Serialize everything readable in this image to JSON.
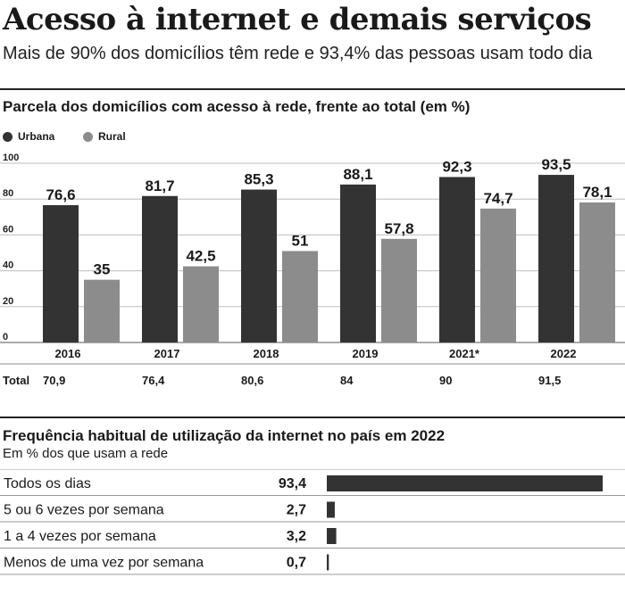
{
  "header": {
    "title": "Acesso à internet e demais serviços",
    "subtitle": "Mais de 90% dos domicílios têm rede e 93,4% das pessoas usam todo dia"
  },
  "chart_data": [
    {
      "type": "bar",
      "title": "Parcela dos domicílios com acesso à rede, frente ao total (em %)",
      "categories": [
        "2016",
        "2017",
        "2018",
        "2019",
        "2021*",
        "2022"
      ],
      "series": [
        {
          "name": "Urbana",
          "values": [
            76.6,
            81.7,
            85.3,
            88.1,
            92.3,
            93.5
          ],
          "labels": [
            "76,6",
            "81,7",
            "85,3",
            "88,1",
            "92,3",
            "93,5"
          ],
          "color": "#333333"
        },
        {
          "name": "Rural",
          "values": [
            35,
            42.5,
            51,
            57.8,
            74.7,
            78.1
          ],
          "labels": [
            "35",
            "42,5",
            "51",
            "57,8",
            "74,7",
            "78,1"
          ],
          "color": "#8c8c8c"
        }
      ],
      "ylim": [
        0,
        100
      ],
      "yticks": [
        "0",
        "20",
        "40",
        "60",
        "80",
        "100"
      ],
      "grid": true,
      "legend": "top-left",
      "total_row": {
        "label": "Total",
        "values": [
          "70,9",
          "76,4",
          "80,6",
          "84",
          "90",
          "91,5"
        ]
      }
    },
    {
      "type": "bar",
      "orientation": "horizontal",
      "title": "Frequência habitual de utilização da internet no país em 2022",
      "subtitle": "Em % dos que usam a rede",
      "categories": [
        "Todos os dias",
        "5 ou 6 vezes por semana",
        "1 a 4 vezes por semana",
        "Menos de uma vez por semana"
      ],
      "values": [
        93.4,
        2.7,
        3.2,
        0.7
      ],
      "labels": [
        "93,4",
        "2,7",
        "3,2",
        "0,7"
      ],
      "color": "#333333"
    }
  ]
}
